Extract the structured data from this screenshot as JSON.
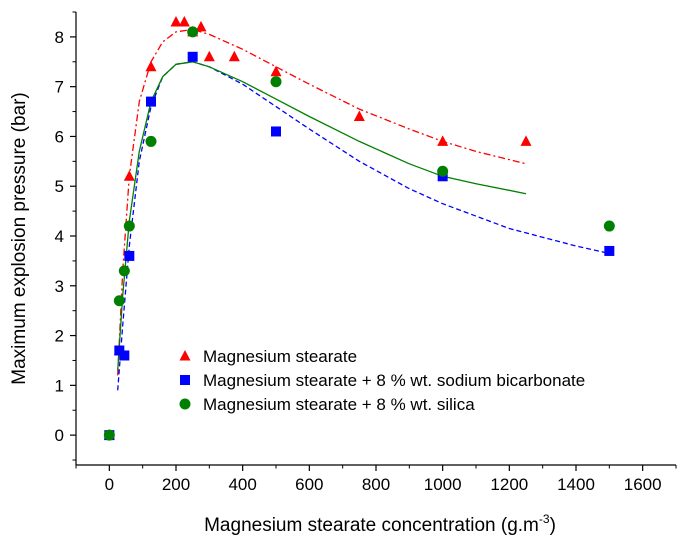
{
  "chart_data": {
    "type": "scatter",
    "title": "",
    "xlabel": "Magnesium stearate concentration (g.m",
    "xlabel_sup": "-3",
    "xlabel_close": ")",
    "ylabel": "Maximum explosion pressure (bar)",
    "xlim": [
      -100,
      1700
    ],
    "ylim": [
      -0.6,
      8.5
    ],
    "x_ticks": [
      0,
      200,
      400,
      600,
      800,
      1000,
      1200,
      1400,
      1600
    ],
    "y_ticks": [
      0,
      1,
      2,
      3,
      4,
      5,
      6,
      7,
      8
    ],
    "legend_position": "bottom-right",
    "grid": false,
    "series": [
      {
        "name": "Magnesium stearate",
        "marker": "triangle",
        "color": "#ff0000",
        "line_style": "dash-dot",
        "points": [
          [
            0,
            0
          ],
          [
            30,
            1.7
          ],
          [
            60,
            5.2
          ],
          [
            125,
            7.4
          ],
          [
            200,
            8.3
          ],
          [
            225,
            8.3
          ],
          [
            250,
            8.1
          ],
          [
            275,
            8.2
          ],
          [
            300,
            7.6
          ],
          [
            375,
            7.6
          ],
          [
            500,
            7.3
          ],
          [
            750,
            6.4
          ],
          [
            1000,
            5.9
          ],
          [
            1250,
            5.9
          ]
        ],
        "fit": [
          [
            25,
            1.2
          ],
          [
            40,
            3.3
          ],
          [
            60,
            5.2
          ],
          [
            90,
            6.7
          ],
          [
            125,
            7.5
          ],
          [
            160,
            7.9
          ],
          [
            200,
            8.1
          ],
          [
            250,
            8.15
          ],
          [
            300,
            8.05
          ],
          [
            400,
            7.75
          ],
          [
            500,
            7.4
          ],
          [
            600,
            7.05
          ],
          [
            750,
            6.55
          ],
          [
            900,
            6.15
          ],
          [
            1000,
            5.9
          ],
          [
            1100,
            5.7
          ],
          [
            1250,
            5.45
          ]
        ]
      },
      {
        "name": "Magnesium stearate + 8 % wt. sodium bicarbonate",
        "marker": "square",
        "color": "#0000ff",
        "line_style": "dashed",
        "points": [
          [
            0,
            0
          ],
          [
            30,
            1.7
          ],
          [
            45,
            1.6
          ],
          [
            60,
            3.6
          ],
          [
            125,
            6.7
          ],
          [
            250,
            7.6
          ],
          [
            500,
            6.1
          ],
          [
            1000,
            5.2
          ],
          [
            1500,
            3.7
          ]
        ],
        "fit": [
          [
            25,
            0.9
          ],
          [
            40,
            2.2
          ],
          [
            60,
            3.8
          ],
          [
            90,
            5.5
          ],
          [
            125,
            6.6
          ],
          [
            160,
            7.2
          ],
          [
            200,
            7.45
          ],
          [
            250,
            7.5
          ],
          [
            300,
            7.4
          ],
          [
            400,
            7.05
          ],
          [
            500,
            6.6
          ],
          [
            600,
            6.15
          ],
          [
            750,
            5.5
          ],
          [
            900,
            4.95
          ],
          [
            1000,
            4.65
          ],
          [
            1200,
            4.15
          ],
          [
            1400,
            3.8
          ],
          [
            1500,
            3.65
          ]
        ]
      },
      {
        "name": "Magnesium stearate + 8 % wt. silica",
        "marker": "circle",
        "color": "#008000",
        "line_style": "solid",
        "points": [
          [
            0,
            0
          ],
          [
            30,
            2.7
          ],
          [
            45,
            3.3
          ],
          [
            60,
            4.2
          ],
          [
            125,
            5.9
          ],
          [
            250,
            8.1
          ],
          [
            500,
            7.1
          ],
          [
            1000,
            5.3
          ],
          [
            1500,
            4.2
          ]
        ],
        "fit": [
          [
            25,
            1.3
          ],
          [
            40,
            2.8
          ],
          [
            60,
            4.3
          ],
          [
            90,
            5.7
          ],
          [
            125,
            6.7
          ],
          [
            160,
            7.2
          ],
          [
            200,
            7.45
          ],
          [
            250,
            7.5
          ],
          [
            300,
            7.4
          ],
          [
            400,
            7.1
          ],
          [
            500,
            6.75
          ],
          [
            600,
            6.4
          ],
          [
            750,
            5.9
          ],
          [
            900,
            5.45
          ],
          [
            1000,
            5.2
          ],
          [
            1100,
            5.05
          ],
          [
            1250,
            4.85
          ]
        ]
      }
    ]
  }
}
